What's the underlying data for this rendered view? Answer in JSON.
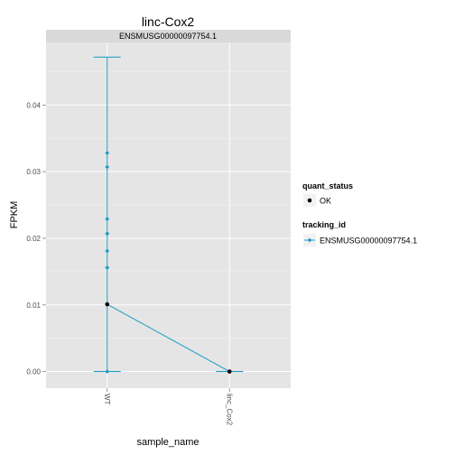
{
  "chart_data": {
    "type": "line",
    "title": "linc-Cox2",
    "facet_label": "ENSMUSG00000097754.1",
    "xlabel": "sample_name",
    "ylabel": "FPKM",
    "categories": [
      "WT",
      "linc_Cox2"
    ],
    "ylim": [
      -0.0025,
      0.0494
    ],
    "yticks": [
      0.0,
      0.01,
      0.02,
      0.03,
      0.04
    ],
    "ytick_labels": [
      "0.00",
      "0.01",
      "0.02",
      "0.03",
      "0.04"
    ],
    "grid": true,
    "legend_position": "right",
    "series": [
      {
        "name": "ENSMUSG00000097754.1",
        "color": "#1a9cc7",
        "values": [
          0.0101,
          0.0
        ],
        "error_bars": [
          [
            0.0,
            0.0472
          ],
          [
            0.0,
            0.0
          ]
        ]
      }
    ],
    "replicates": [
      {
        "category": "WT",
        "values": [
          0.0328,
          0.0307,
          0.0229,
          0.0207,
          0.0181,
          0.0156,
          0.0
        ]
      }
    ],
    "legends": [
      {
        "title": "quant_status",
        "entries": [
          {
            "label": "OK",
            "color": "#000000"
          }
        ]
      },
      {
        "title": "tracking_id",
        "entries": [
          {
            "label": "ENSMUSG00000097754.1",
            "color": "#1a9cc7"
          }
        ]
      }
    ]
  }
}
